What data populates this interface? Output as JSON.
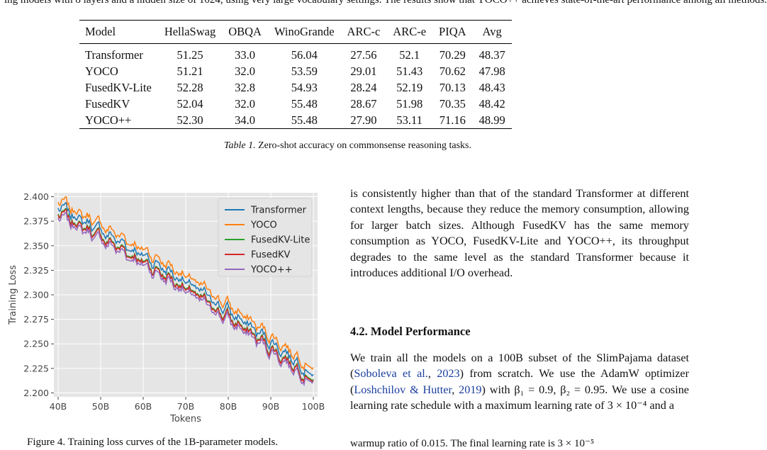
{
  "top_fragment": "ing models with 8 layers and a hidden size of 1024, using very large vocabulary settings. The results show that YOCO++ achieves state-of-the-art performance among all methods.",
  "table": {
    "headers": [
      "Model",
      "HellaSwag",
      "OBQA",
      "WinoGrande",
      "ARC-c",
      "ARC-e",
      "PIQA",
      "Avg"
    ],
    "rows": [
      {
        "cells": [
          "Transformer",
          "51.25",
          "33.0",
          "56.04",
          "27.56",
          "52.1",
          "70.29",
          "48.37"
        ],
        "bold": [
          false,
          false,
          false,
          true,
          false,
          false,
          false,
          false
        ]
      },
      {
        "cells": [
          "YOCO",
          "51.21",
          "32.0",
          "53.59",
          "29.01",
          "51.43",
          "70.62",
          "47.98"
        ],
        "bold": [
          false,
          false,
          false,
          false,
          true,
          false,
          false,
          false
        ]
      },
      {
        "cells": [
          "FusedKV-Lite",
          "52.28",
          "32.8",
          "54.93",
          "28.24",
          "52.19",
          "70.13",
          "48.43"
        ],
        "bold": [
          false,
          false,
          false,
          false,
          false,
          false,
          false,
          false
        ]
      },
      {
        "cells": [
          "FusedKV",
          "52.04",
          "32.0",
          "55.48",
          "28.67",
          "51.98",
          "70.35",
          "48.42"
        ],
        "bold": [
          false,
          false,
          false,
          false,
          false,
          false,
          false,
          false
        ]
      },
      {
        "cells": [
          "YOCO++",
          "52.30",
          "34.0",
          "55.48",
          "27.90",
          "53.11",
          "71.16",
          "48.99"
        ],
        "bold": [
          false,
          true,
          true,
          false,
          false,
          true,
          true,
          true
        ]
      }
    ]
  },
  "caption": {
    "label": "Table 1.",
    "text": " Zero-shot accuracy on commonsense reasoning tasks."
  },
  "chart_data": {
    "type": "line",
    "xlabel": "Tokens",
    "ylabel": "Training Loss",
    "x_ticks": [
      "40B",
      "50B",
      "60B",
      "70B",
      "80B",
      "90B",
      "100B"
    ],
    "y_ticks": [
      "2.200",
      "2.225",
      "2.250",
      "2.275",
      "2.300",
      "2.325",
      "2.350",
      "2.375",
      "2.400"
    ],
    "xlim": [
      39,
      101
    ],
    "ylim": [
      2.196,
      2.404
    ],
    "grid": true,
    "legend_position": "top-right",
    "series": [
      {
        "name": "Transformer",
        "color": "#1f77b4",
        "offset": 0.006,
        "end": 2.219
      },
      {
        "name": "YOCO",
        "color": "#ff7f0e",
        "offset": 0.012,
        "end": 2.226
      },
      {
        "name": "FusedKV-Lite",
        "color": "#2ca02c",
        "offset": 0.0,
        "end": 2.214
      },
      {
        "name": "FusedKV",
        "color": "#d62728",
        "offset": -0.001,
        "end": 2.213
      },
      {
        "name": "YOCO++",
        "color": "#9467bd",
        "offset": -0.004,
        "end": 2.212
      }
    ]
  },
  "para1": "is consistently higher than that of the standard Transformer at different context lengths, because they reduce the memory consumption, allowing for larger batch sizes. Although FusedKV has the same memory consumption as YOCO, FusedKV-Lite and YOCO++, its throughput degrades to the same level as the standard Transformer because it introduces additional I/O overhead.",
  "section_title": "4.2. Model Performance",
  "para2": {
    "t1": "We train all the models on a 100B subset of the SlimPajama dataset (",
    "c1": "Soboleva et al.",
    "t2": ", ",
    "c1y": "2023",
    "t3": ") from scratch. We use the AdamW optimizer (",
    "c2": "Loshchilov & Hutter",
    "t4": ", ",
    "c2y": "2019",
    "t5": ") with β₁ = 0.9, β₂ = 0.95. We use a cosine learning rate schedule with a maximum learning rate of 3 × 10⁻⁴ and a"
  },
  "bottom_left": "Figure 4. Training loss curves of the 1B-parameter models.",
  "bottom_right": "warmup ratio of 0.015. The final learning rate is 3 × 10⁻⁵"
}
